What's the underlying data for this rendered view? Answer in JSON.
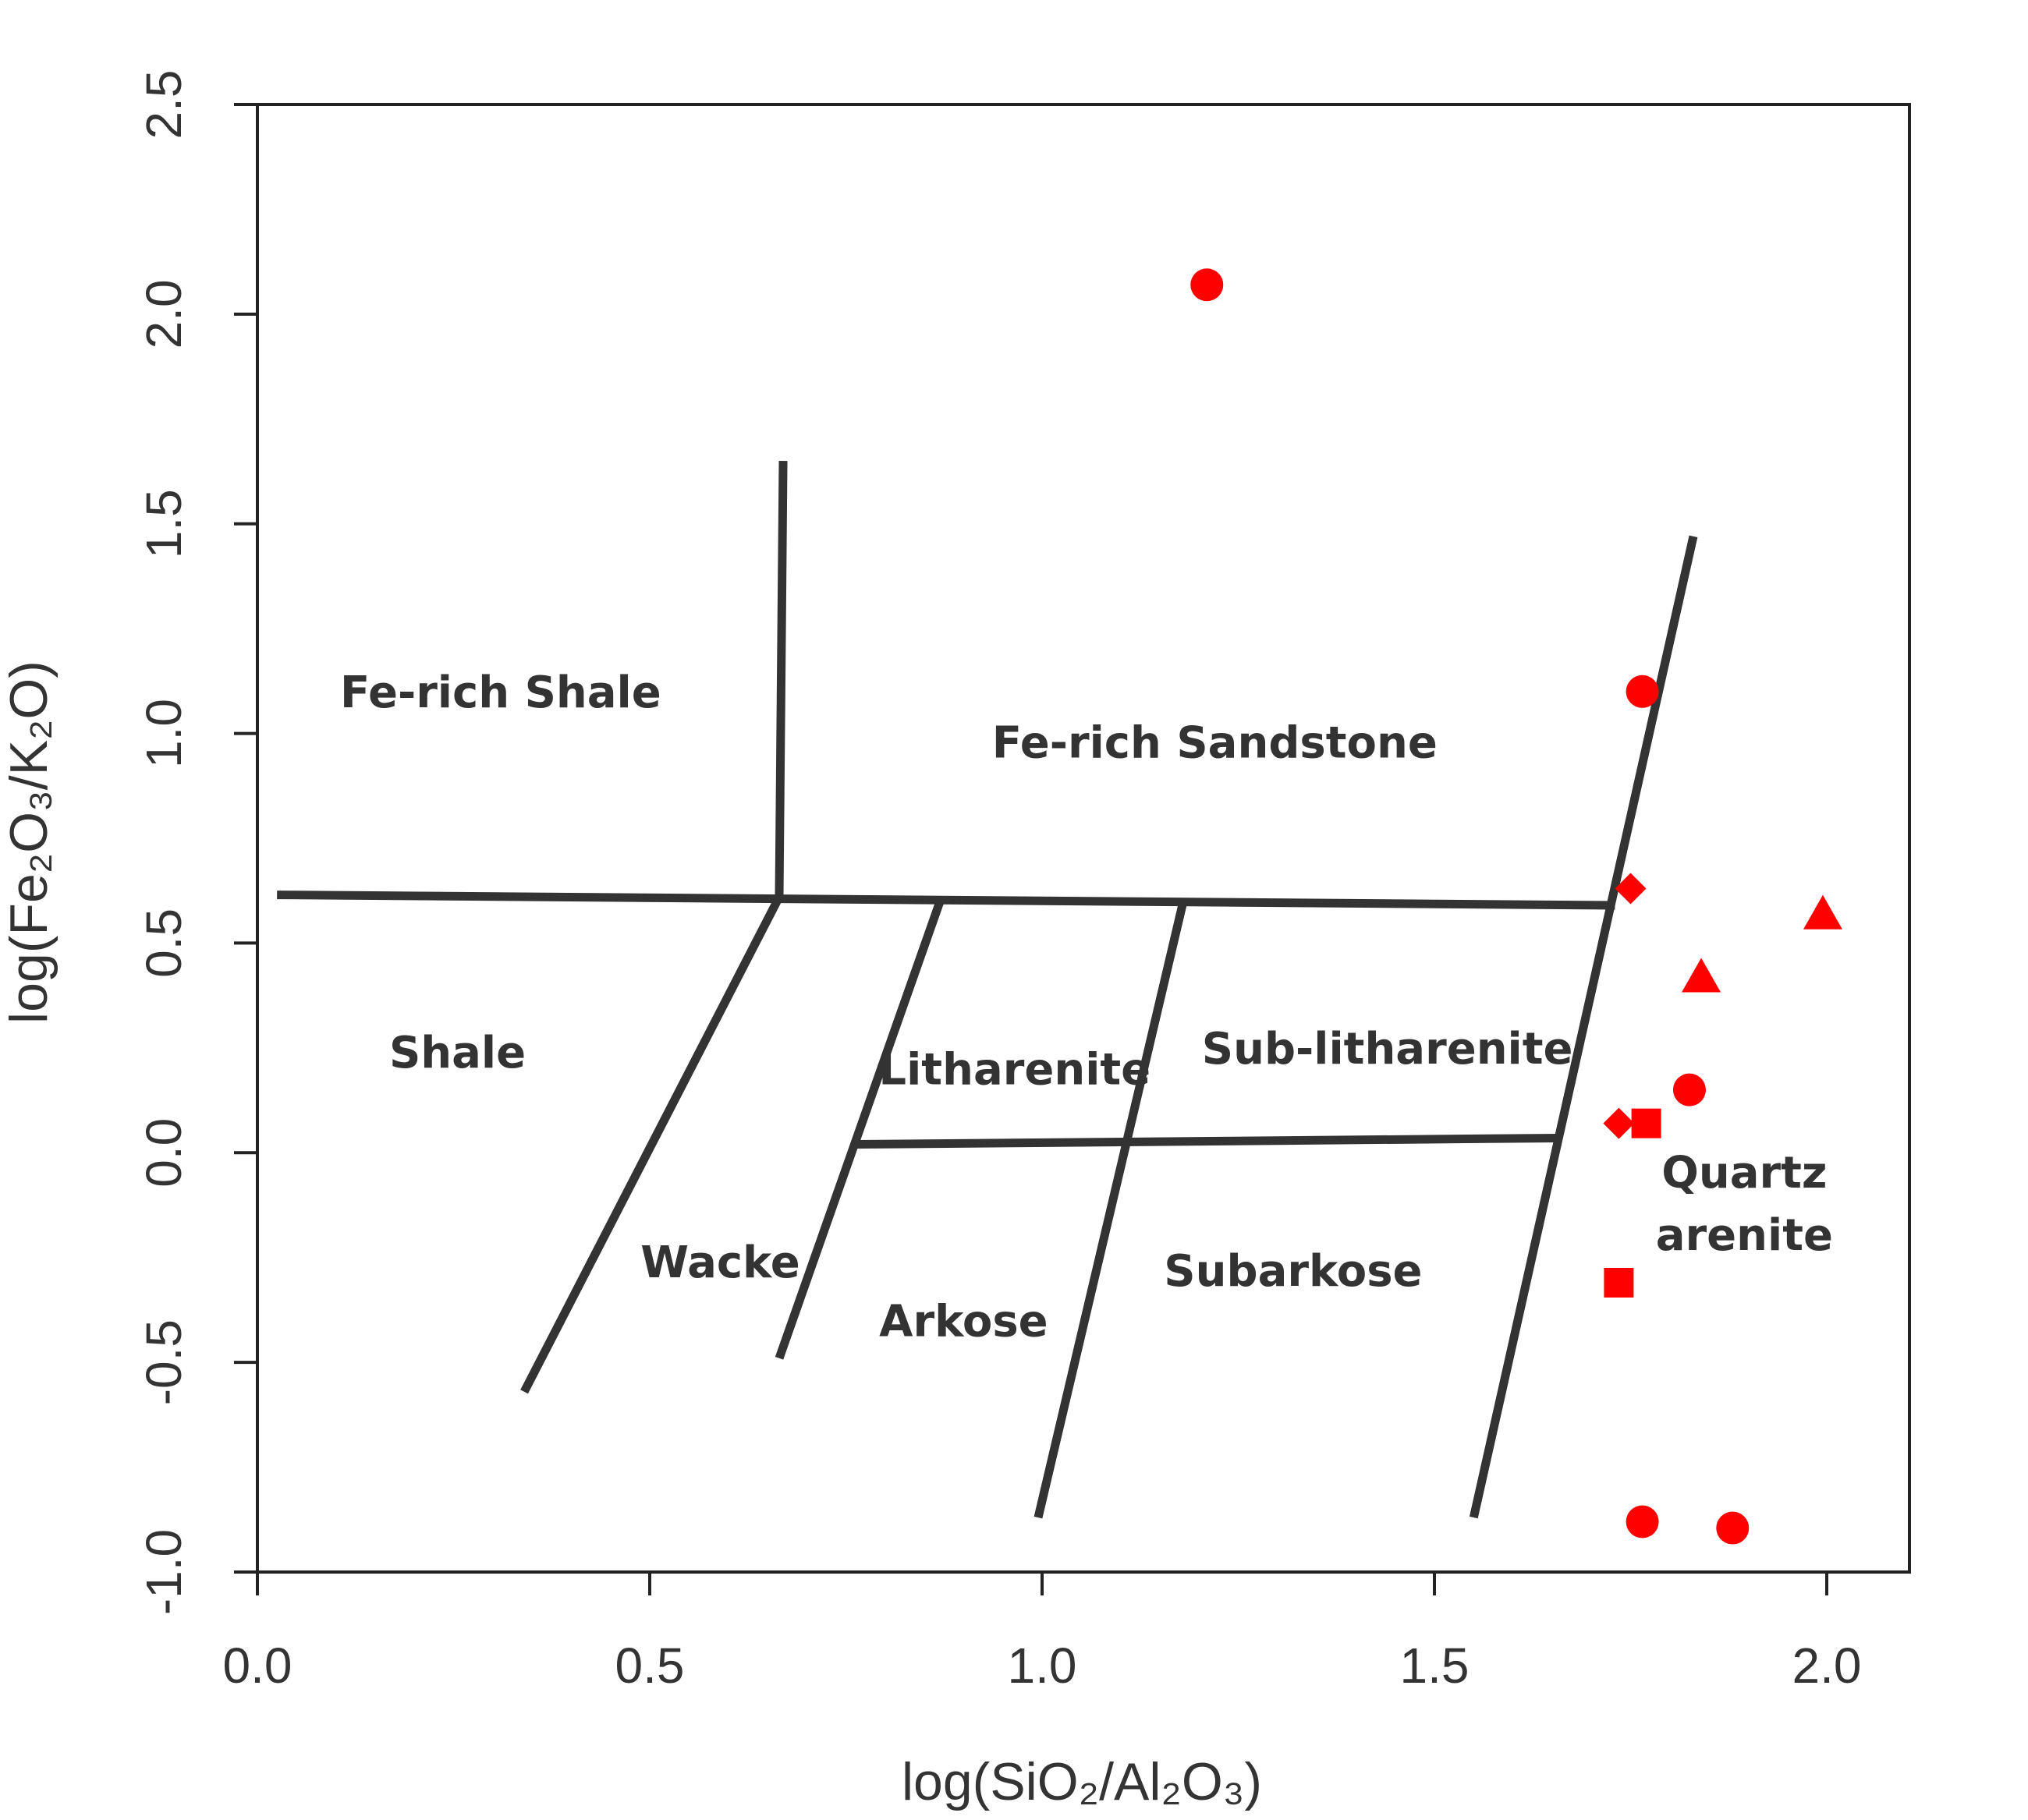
{
  "chart_data": {
    "type": "scatter",
    "xlabel": "log(SiO₂/Al₂O₃)",
    "ylabel": "log(Fe₂O₃/K₂O)",
    "xlim": [
      0.0,
      2.1
    ],
    "ylim": [
      -1.0,
      2.5
    ],
    "x_ticks": [
      "0.0",
      "0.5",
      "1.0",
      "1.5",
      "2.0"
    ],
    "y_ticks": [
      "-1.0",
      "-0.5",
      "0.0",
      "0.5",
      "1.0",
      "1.5",
      "2.0",
      "2.5"
    ],
    "marker_color": "#ff0000",
    "line_color": "#333333",
    "regions": [
      {
        "name": "Fe-rich Shale",
        "lines": [
          "Fe-rich Shale"
        ],
        "x": 0.31,
        "y": 1.1
      },
      {
        "name": "Fe-rich Sandstone",
        "lines": [
          "Fe-rich Sandstone"
        ],
        "x": 1.22,
        "y": 0.98
      },
      {
        "name": "Shale",
        "lines": [
          "Shale"
        ],
        "x": 0.255,
        "y": 0.24
      },
      {
        "name": "Litharenite",
        "lines": [
          "Litharenite"
        ],
        "x": 0.965,
        "y": 0.2
      },
      {
        "name": "Sub-litharenite",
        "lines": [
          "Sub-litharenite"
        ],
        "x": 1.44,
        "y": 0.25
      },
      {
        "name": "Wacke",
        "lines": [
          "Wacke"
        ],
        "x": 0.59,
        "y": -0.26
      },
      {
        "name": "Arkose",
        "lines": [
          "Arkose"
        ],
        "x": 0.9,
        "y": -0.4
      },
      {
        "name": "Subarkose",
        "lines": [
          "Subarkose"
        ],
        "x": 1.32,
        "y": -0.28
      },
      {
        "name": "Quartz arenite",
        "lines": [
          "Quartz",
          "arenite"
        ],
        "x": 1.895,
        "y": -0.12
      }
    ],
    "boundaries": [
      [
        [
          0.67,
          1.65
        ],
        [
          0.665,
          0.61
        ]
      ],
      [
        [
          0.025,
          0.615
        ],
        [
          1.73,
          0.59
        ]
      ],
      [
        [
          0.665,
          0.61
        ],
        [
          0.34,
          -0.57
        ]
      ],
      [
        [
          0.87,
          0.6
        ],
        [
          0.665,
          -0.49
        ]
      ],
      [
        [
          0.76,
          0.02
        ],
        [
          1.66,
          0.035
        ]
      ],
      [
        [
          1.18,
          0.6
        ],
        [
          0.995,
          -0.87
        ]
      ],
      [
        [
          1.83,
          1.47
        ],
        [
          1.55,
          -0.87
        ]
      ]
    ],
    "points": [
      {
        "x": 1.21,
        "y": 2.07,
        "shape": "circle"
      },
      {
        "x": 1.765,
        "y": 1.1,
        "shape": "circle"
      },
      {
        "x": 1.75,
        "y": 0.63,
        "shape": "diamond"
      },
      {
        "x": 1.995,
        "y": 0.57,
        "shape": "triangle"
      },
      {
        "x": 1.84,
        "y": 0.42,
        "shape": "triangle"
      },
      {
        "x": 1.825,
        "y": 0.15,
        "shape": "circle"
      },
      {
        "x": 1.735,
        "y": 0.07,
        "shape": "diamond"
      },
      {
        "x": 1.77,
        "y": 0.07,
        "shape": "square"
      },
      {
        "x": 1.735,
        "y": -0.31,
        "shape": "square"
      },
      {
        "x": 1.765,
        "y": -0.88,
        "shape": "circle"
      },
      {
        "x": 1.88,
        "y": -0.895,
        "shape": "circle"
      }
    ]
  }
}
